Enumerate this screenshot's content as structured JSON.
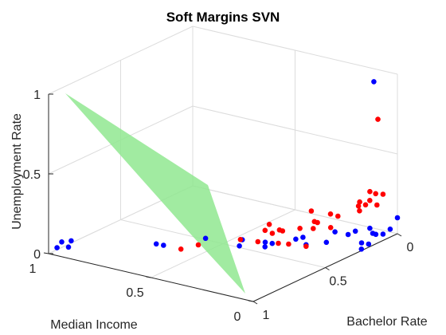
{
  "chart_data": {
    "type": "scatter",
    "title": "Soft Margins SVN",
    "xlabel": "Bachelor Rate",
    "ylabel": "Median Income",
    "zlabel": "Unemployment Rate",
    "xlim": [
      0,
      1
    ],
    "ylim": [
      0,
      1
    ],
    "zlim": [
      0,
      1
    ],
    "grid": true,
    "x_ticks": [
      "0",
      "0.5",
      "1"
    ],
    "y_ticks": [
      "0",
      "0.5",
      "1"
    ],
    "z_ticks": [
      "0",
      "0.5",
      "1"
    ],
    "plane_color": "#90e890",
    "series": [
      {
        "color": "#0000ff",
        "points": [
          {
            "x": 0.05,
            "y": 0.08,
            "z": 0.95
          },
          {
            "x": 0.98,
            "y": 0.95,
            "z": 0.08
          },
          {
            "x": 0.97,
            "y": 0.98,
            "z": 0.03
          },
          {
            "x": 0.9,
            "y": 0.96,
            "z": 0.05
          },
          {
            "x": 0.89,
            "y": 0.98,
            "z": 0.0
          },
          {
            "x": 0.75,
            "y": 0.65,
            "z": 0.06
          },
          {
            "x": 0.7,
            "y": 0.65,
            "z": 0.03
          },
          {
            "x": 0.55,
            "y": 0.55,
            "z": 0.04
          },
          {
            "x": 0.48,
            "y": 0.42,
            "z": 0.04
          },
          {
            "x": 0.5,
            "y": 0.42,
            "z": 0.01
          },
          {
            "x": 0.42,
            "y": 0.35,
            "z": 0.02
          },
          {
            "x": 0.45,
            "y": 0.33,
            "z": 0.01
          },
          {
            "x": 0.4,
            "y": 0.33,
            "z": 0.01
          },
          {
            "x": 0.35,
            "y": 0.25,
            "z": 0.04
          },
          {
            "x": 0.3,
            "y": 0.25,
            "z": 0.03
          },
          {
            "x": 0.35,
            "y": 0.2,
            "z": 0.02
          },
          {
            "x": 0.28,
            "y": 0.15,
            "z": 0.02
          },
          {
            "x": 0.22,
            "y": 0.15,
            "z": 0.06
          },
          {
            "x": 0.2,
            "y": 0.1,
            "z": 0.05
          },
          {
            "x": 0.15,
            "y": 0.1,
            "z": 0.05
          },
          {
            "x": 0.1,
            "y": 0.05,
            "z": 0.03
          },
          {
            "x": 0.12,
            "y": 0.05,
            "z": 0.07
          },
          {
            "x": 0.22,
            "y": 0.02,
            "z": 0.03
          },
          {
            "x": 0.1,
            "y": 0.0,
            "z": 0.04
          },
          {
            "x": 0.15,
            "y": 0.0,
            "z": 0.06
          },
          {
            "x": 0.05,
            "y": 0.0,
            "z": 0.05
          },
          {
            "x": 0.0,
            "y": 0.0,
            "z": 0.1
          },
          {
            "x": 0.2,
            "y": 0.0,
            "z": 0.02
          },
          {
            "x": 0.25,
            "y": 0.0,
            "z": 0.01
          }
        ]
      },
      {
        "color": "#ff0000",
        "points": [
          {
            "x": 0.05,
            "y": 0.06,
            "z": 0.72
          },
          {
            "x": 0.1,
            "y": 0.0,
            "z": 0.29
          },
          {
            "x": 0.12,
            "y": 0.05,
            "z": 0.3
          },
          {
            "x": 0.08,
            "y": 0.05,
            "z": 0.27
          },
          {
            "x": 0.15,
            "y": 0.05,
            "z": 0.23
          },
          {
            "x": 0.12,
            "y": 0.1,
            "z": 0.22
          },
          {
            "x": 0.05,
            "y": 0.1,
            "z": 0.2
          },
          {
            "x": 0.1,
            "y": 0.12,
            "z": 0.18
          },
          {
            "x": 0.0,
            "y": 0.1,
            "z": 0.15
          },
          {
            "x": 0.05,
            "y": 0.15,
            "z": 0.12
          },
          {
            "x": 0.2,
            "y": 0.15,
            "z": 0.15
          },
          {
            "x": 0.18,
            "y": 0.2,
            "z": 0.14
          },
          {
            "x": 0.25,
            "y": 0.15,
            "z": 0.1
          },
          {
            "x": 0.3,
            "y": 0.2,
            "z": 0.1
          },
          {
            "x": 0.2,
            "y": 0.25,
            "z": 0.08
          },
          {
            "x": 0.25,
            "y": 0.3,
            "z": 0.05
          },
          {
            "x": 0.15,
            "y": 0.3,
            "z": 0.05
          },
          {
            "x": 0.1,
            "y": 0.35,
            "z": 0.08
          },
          {
            "x": 0.3,
            "y": 0.35,
            "z": 0.04
          },
          {
            "x": 0.4,
            "y": 0.3,
            "z": 0.02
          },
          {
            "x": 0.35,
            "y": 0.4,
            "z": 0.05
          },
          {
            "x": 0.25,
            "y": 0.45,
            "z": 0.03
          },
          {
            "x": 0.3,
            "y": 0.4,
            "z": 0.01
          },
          {
            "x": 0.45,
            "y": 0.45,
            "z": 0.02
          },
          {
            "x": 0.4,
            "y": 0.4,
            "z": 0.0
          },
          {
            "x": 0.6,
            "y": 0.55,
            "z": 0.02
          },
          {
            "x": 0.4,
            "y": 0.25,
            "z": 0.03
          },
          {
            "x": 0.65,
            "y": 0.6,
            "z": 0.0
          },
          {
            "x": 0.25,
            "y": 0.4,
            "z": 0.01
          },
          {
            "x": 0.35,
            "y": 0.2,
            "z": 0.01
          }
        ]
      }
    ]
  }
}
